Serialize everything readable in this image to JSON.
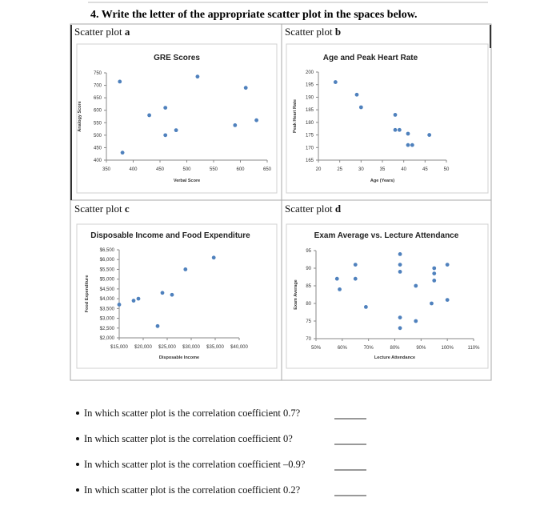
{
  "header": {
    "title": "4. Write the letter of the appropriate scatter plot in the spaces below."
  },
  "panels": [
    {
      "prefix": "Scatter plot",
      "letter": "a",
      "chart": {
        "type": "scatter",
        "title": "GRE Scores",
        "x_label": "Verbal Score",
        "y_label": "Analogy Score",
        "color": "#4f81bd",
        "x": [
          375,
          520,
          610,
          460,
          430,
          480,
          460,
          590,
          630,
          380
        ],
        "y": [
          715,
          735,
          690,
          610,
          580,
          520,
          500,
          540,
          560,
          430
        ],
        "xlim": [
          350,
          650
        ],
        "xticks": [
          350,
          400,
          450,
          500,
          550,
          600,
          650
        ],
        "ylim": [
          400,
          750
        ],
        "yticks": [
          400,
          450,
          500,
          550,
          600,
          650,
          700,
          750
        ]
      }
    },
    {
      "prefix": "Scatter plot",
      "letter": "b",
      "chart": {
        "type": "scatter",
        "title": "Age and Peak Heart Rate",
        "x_label": "Age (Years)",
        "y_label": "Peak Heart Rate",
        "color": "#4f81bd",
        "x": [
          24,
          29,
          30,
          38,
          38,
          39,
          41,
          41,
          42,
          46
        ],
        "y": [
          196,
          191,
          186,
          183,
          177,
          177,
          175.5,
          171,
          171,
          175
        ],
        "xlim": [
          20,
          50
        ],
        "xticks": [
          20,
          25,
          30,
          35,
          40,
          45,
          50
        ],
        "ylim": [
          165,
          200
        ],
        "yticks": [
          165,
          170,
          175,
          180,
          185,
          190,
          195,
          200
        ]
      }
    },
    {
      "prefix": "Scatter plot",
      "letter": "c",
      "chart": {
        "type": "scatter",
        "title": "Disposable Income and Food Expenditure",
        "x_label": "Disposable Income",
        "y_label": "Food Expenditure",
        "color": "#4f81bd",
        "x": [
          15000,
          18000,
          19000,
          23000,
          24000,
          26000,
          28800,
          34700
        ],
        "y": [
          3700,
          3900,
          4000,
          2600,
          4300,
          4200,
          5500,
          6100
        ],
        "xlim": [
          15000,
          40000
        ],
        "xticks": [
          {
            "value": 15000,
            "label": "$15,000"
          },
          {
            "value": 20000,
            "label": "$20,000"
          },
          {
            "value": 25000,
            "label": "$25,000"
          },
          {
            "value": 30000,
            "label": "$30,000"
          },
          {
            "value": 35000,
            "label": "$35,000"
          },
          {
            "value": 40000,
            "label": "$40,000"
          }
        ],
        "ylim": [
          2000,
          6500
        ],
        "yticks": [
          {
            "value": 2000,
            "label": "$2,000"
          },
          {
            "value": 2500,
            "label": "$2,500"
          },
          {
            "value": 3000,
            "label": "$3,000"
          },
          {
            "value": 3500,
            "label": "$3,500"
          },
          {
            "value": 4000,
            "label": "$4,000"
          },
          {
            "value": 4500,
            "label": "$4,500"
          },
          {
            "value": 5000,
            "label": "$5,000"
          },
          {
            "value": 5500,
            "label": "$5,500"
          },
          {
            "value": 6000,
            "label": "$6,000"
          },
          {
            "value": 6500,
            "label": "$6,500"
          }
        ]
      }
    },
    {
      "prefix": "Scatter plot",
      "letter": "d",
      "chart": {
        "type": "scatter",
        "title": "Exam Average vs. Lecture Attendance",
        "x_label": "Lecture Attendance",
        "y_label": "Exam Average",
        "color": "#4f81bd",
        "x": [
          58,
          59,
          65,
          65,
          69,
          82,
          82,
          82,
          82,
          82,
          88,
          88,
          95,
          95,
          95,
          94,
          100,
          100
        ],
        "y": [
          87,
          84,
          91,
          87,
          79,
          94,
          91,
          89,
          76,
          73,
          85,
          75,
          90,
          88.5,
          86.5,
          80,
          91,
          81
        ],
        "xlim": [
          50,
          110
        ],
        "xticks": [
          {
            "value": 50,
            "label": "50%"
          },
          {
            "value": 60,
            "label": "60%"
          },
          {
            "value": 70,
            "label": "70%"
          },
          {
            "value": 80,
            "label": "80%"
          },
          {
            "value": 90,
            "label": "90%"
          },
          {
            "value": 100,
            "label": "100%"
          },
          {
            "value": 110,
            "label": "110%"
          }
        ],
        "ylim": [
          70,
          95
        ],
        "yticks": [
          70,
          75,
          80,
          85,
          90,
          95
        ]
      }
    }
  ],
  "questions": [
    "In which scatter plot is the correlation coefficient 0.7?",
    "In which scatter plot is the correlation coefficient 0?",
    "In which scatter plot is the correlation coefficient –0.9?",
    "In which scatter plot is the correlation coefficient 0.2?"
  ]
}
